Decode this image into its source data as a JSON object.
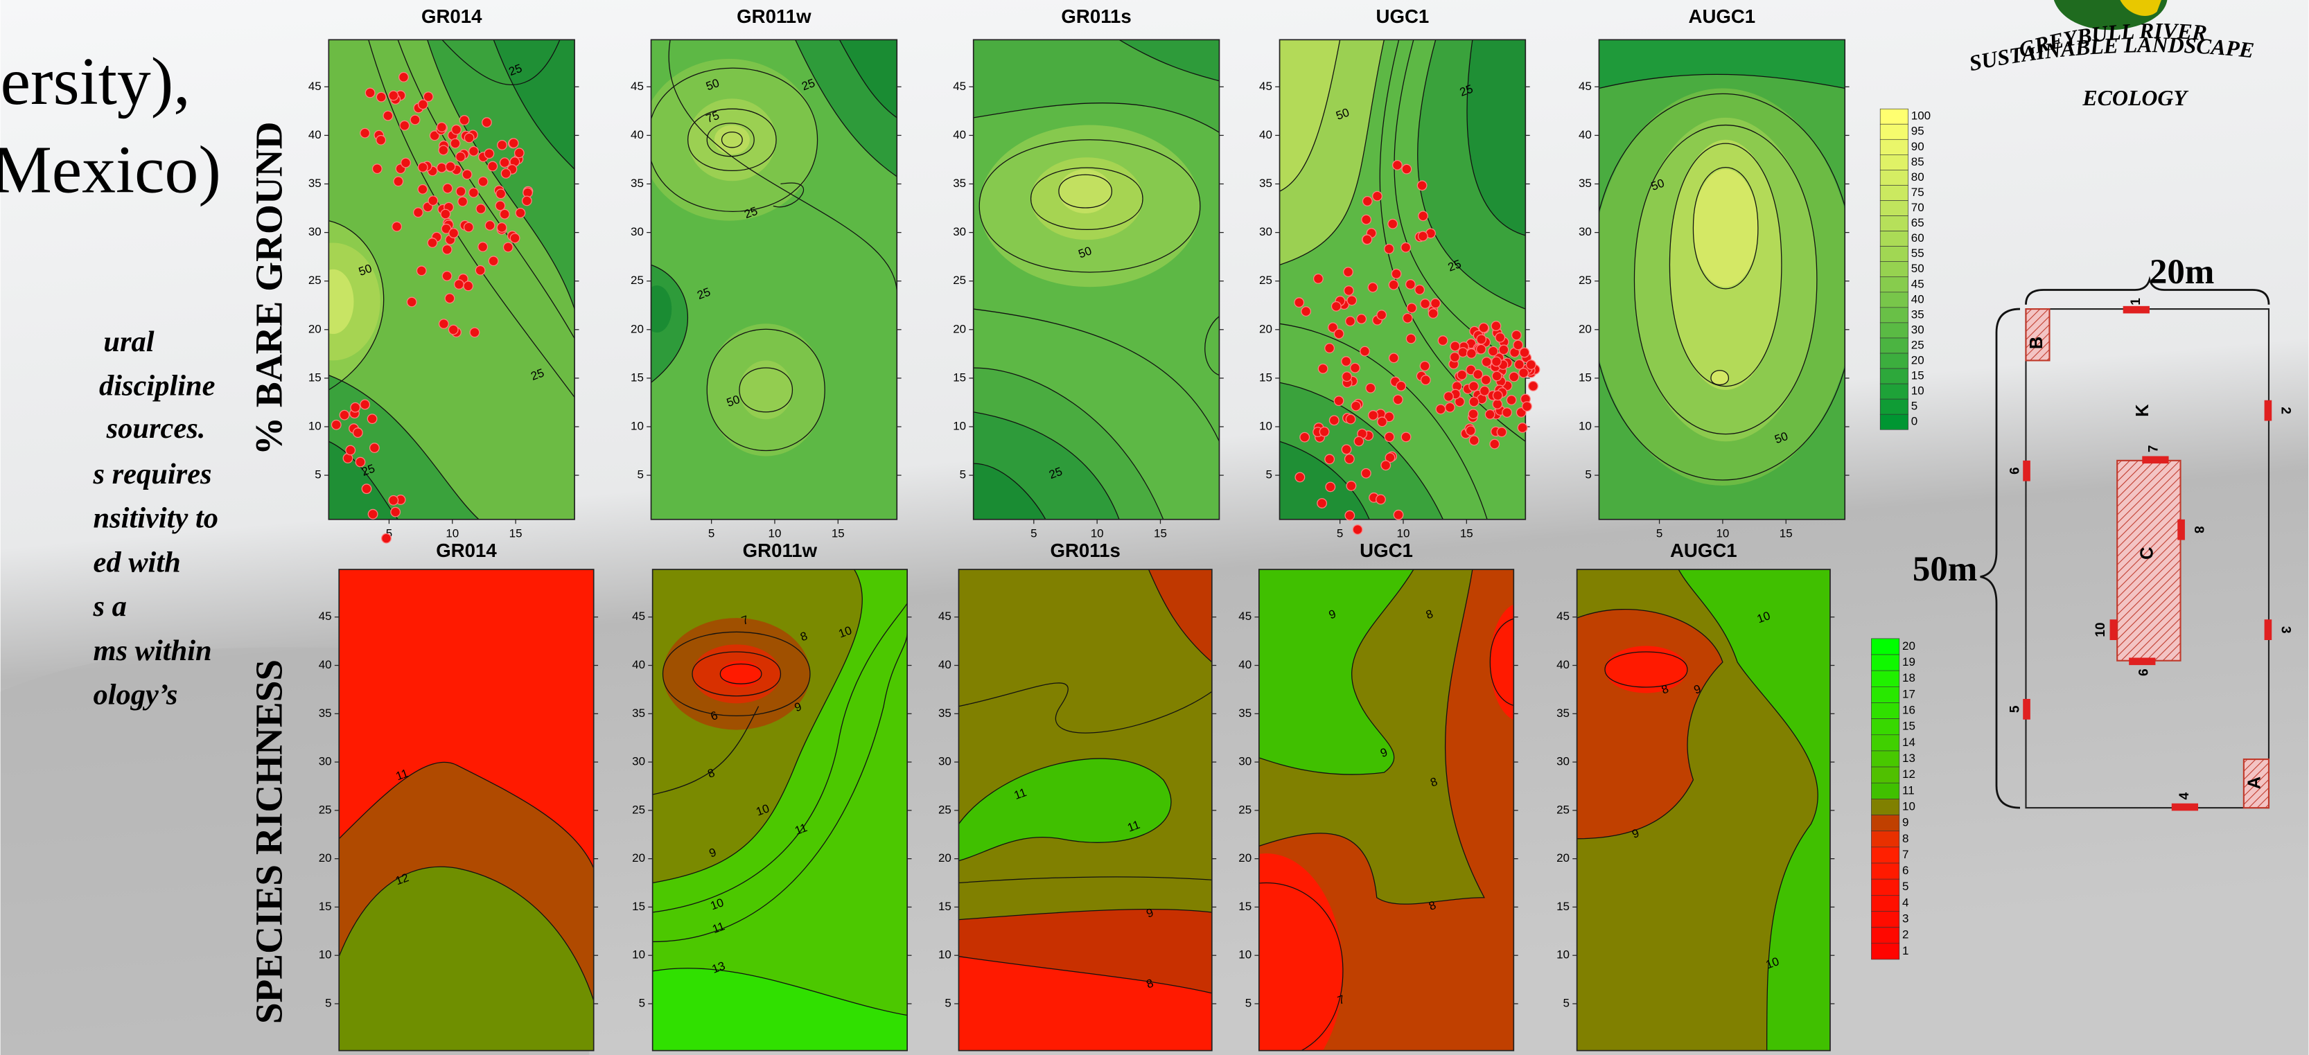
{
  "left_text": {
    "heading_lines": [
      "ersity),",
      "Mexico)"
    ],
    "body_lines": [
      "ural",
      "discipline",
      "sources.",
      "s requires",
      "nsitivity to",
      "ed with",
      "s a",
      "ms within",
      "ology’s"
    ]
  },
  "row_labels": [
    "% BARE GROUND",
    "SPECIES RICHNESS"
  ],
  "top_row": {
    "panels": [
      {
        "title": "GR014",
        "contour_labels": [
          25,
          50,
          25,
          25
        ]
      },
      {
        "title": "GR011w",
        "contour_labels": [
          50,
          25,
          75,
          25,
          25,
          50
        ]
      },
      {
        "title": "GR011s",
        "contour_labels": [
          50,
          25
        ]
      },
      {
        "title": "UGC1",
        "contour_labels": [
          50,
          25,
          25
        ]
      },
      {
        "title": "AUGC1",
        "contour_labels": [
          50,
          50
        ]
      }
    ],
    "y_ticks": [
      5,
      10,
      15,
      20,
      25,
      30,
      35,
      40,
      45
    ],
    "x_ticks": [
      5,
      10,
      15
    ],
    "colorbar_labels": [
      100,
      95,
      90,
      85,
      80,
      75,
      70,
      65,
      60,
      55,
      50,
      45,
      40,
      35,
      30,
      25,
      20,
      15,
      10,
      5,
      0
    ]
  },
  "bottom_row": {
    "panels": [
      {
        "title": "GR014",
        "contour_labels": [
          11,
          12
        ]
      },
      {
        "title": "GR011w",
        "contour_labels": [
          7,
          8,
          10,
          9,
          6,
          8,
          9,
          10,
          11,
          10,
          11,
          13
        ]
      },
      {
        "title": "GR011s",
        "contour_labels": [
          11,
          11,
          9,
          8
        ]
      },
      {
        "title": "UGC1",
        "contour_labels": [
          9,
          8,
          9,
          8,
          8,
          7
        ]
      },
      {
        "title": "AUGC1",
        "contour_labels": [
          10,
          8,
          9,
          9,
          10
        ]
      }
    ],
    "y_ticks": [
      5,
      10,
      15,
      20,
      25,
      30,
      35,
      40,
      45
    ],
    "colorbar_labels": [
      20,
      19,
      18,
      17,
      16,
      15,
      14,
      13,
      12,
      11,
      10,
      9,
      8,
      7,
      6,
      5,
      4,
      3,
      2,
      1
    ]
  },
  "logo": {
    "lines": [
      "GREYBULL  RIVER",
      "SUSTAINABLE LANDSCAPE",
      "ECOLOGY"
    ]
  },
  "plot_diagram": {
    "width_label": "20m",
    "height_label": "50m",
    "markers": [
      "1",
      "2",
      "3",
      "4",
      "5",
      "6",
      "7",
      "8",
      "9",
      "10"
    ],
    "subplots": [
      "K",
      "C",
      "B",
      "A"
    ]
  }
}
